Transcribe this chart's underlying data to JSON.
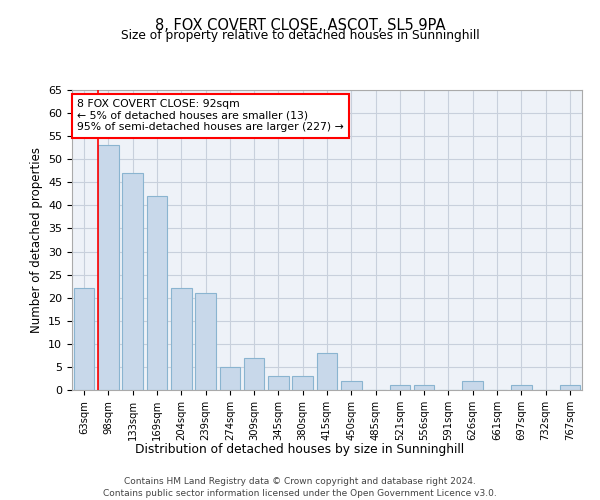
{
  "title": "8, FOX COVERT CLOSE, ASCOT, SL5 9PA",
  "subtitle": "Size of property relative to detached houses in Sunninghill",
  "xlabel": "Distribution of detached houses by size in Sunninghill",
  "ylabel": "Number of detached properties",
  "bar_color": "#c8d8ea",
  "bar_edge_color": "#8ab4d0",
  "grid_color": "#c8d0dc",
  "bg_color": "#eef2f8",
  "categories": [
    "63sqm",
    "98sqm",
    "133sqm",
    "169sqm",
    "204sqm",
    "239sqm",
    "274sqm",
    "309sqm",
    "345sqm",
    "380sqm",
    "415sqm",
    "450sqm",
    "485sqm",
    "521sqm",
    "556sqm",
    "591sqm",
    "626sqm",
    "661sqm",
    "697sqm",
    "732sqm",
    "767sqm"
  ],
  "values": [
    22,
    53,
    47,
    42,
    22,
    21,
    5,
    7,
    3,
    3,
    8,
    2,
    0,
    1,
    1,
    0,
    2,
    0,
    1,
    0,
    1
  ],
  "ylim": [
    0,
    65
  ],
  "yticks": [
    0,
    5,
    10,
    15,
    20,
    25,
    30,
    35,
    40,
    45,
    50,
    55,
    60,
    65
  ],
  "annotation_line1": "8 FOX COVERT CLOSE: 92sqm",
  "annotation_line2": "← 5% of detached houses are smaller (13)",
  "annotation_line3": "95% of semi-detached houses are larger (227) →",
  "red_line_x": 0.57,
  "footer_line1": "Contains HM Land Registry data © Crown copyright and database right 2024.",
  "footer_line2": "Contains public sector information licensed under the Open Government Licence v3.0."
}
